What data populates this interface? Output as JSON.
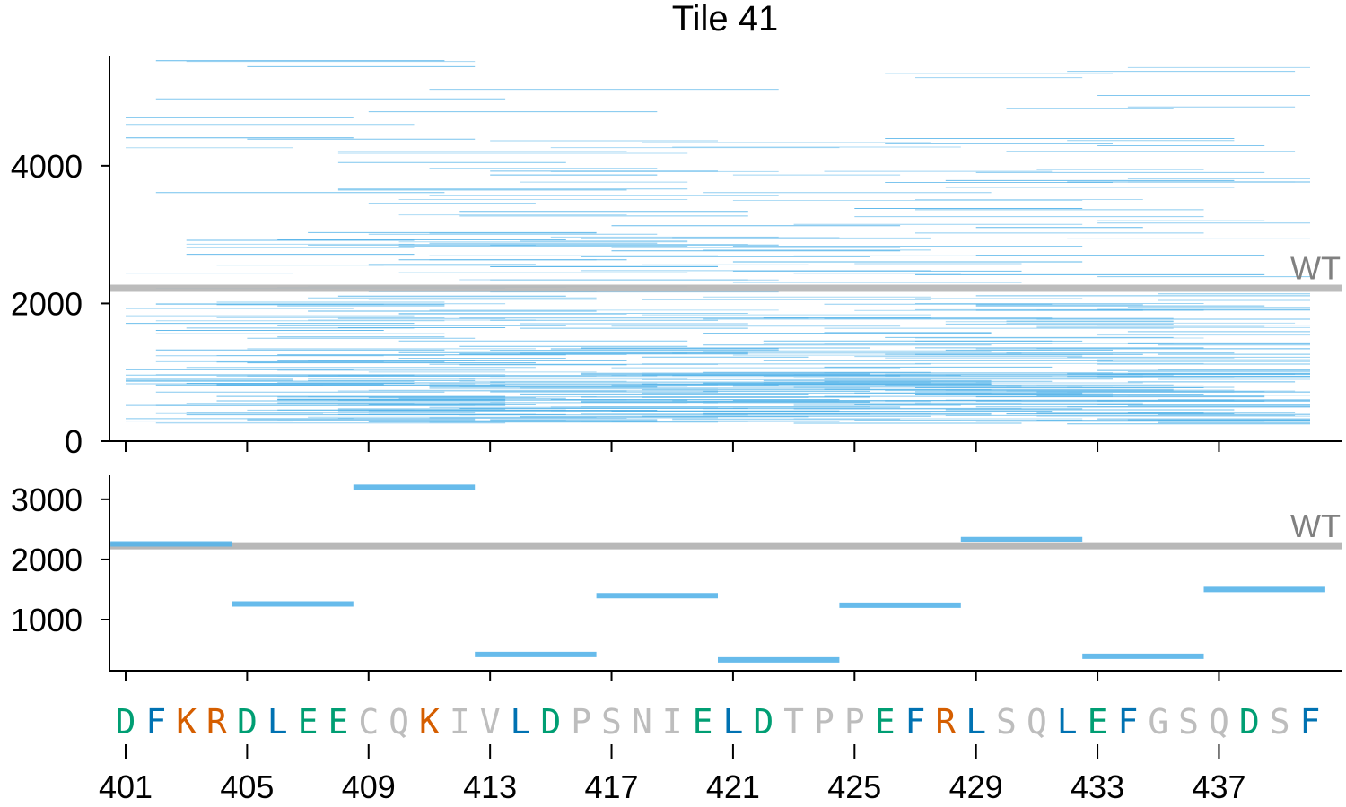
{
  "chart_data": [
    {
      "type": "segments",
      "title": "Tile 41",
      "ylim": [
        0,
        5600
      ],
      "yticks": [
        0,
        2000,
        4000
      ],
      "wt_value": 2220,
      "wt_label": "WT",
      "segment_color": "#56b4e9",
      "wt_color": "#b8b8b8",
      "segment_bands": [
        {
          "y_min": 250,
          "y_max": 1000,
          "count": 220
        },
        {
          "y_min": 1000,
          "y_max": 2000,
          "count": 120
        },
        {
          "y_min": 2000,
          "y_max": 3000,
          "count": 60
        },
        {
          "y_min": 3000,
          "y_max": 4000,
          "count": 40
        },
        {
          "y_min": 4000,
          "y_max": 5650,
          "count": 30
        }
      ]
    },
    {
      "type": "segments",
      "ylim": [
        150,
        3400
      ],
      "yticks": [
        1000,
        2000,
        3000
      ],
      "wt_value": 2220,
      "wt_label": "WT",
      "segment_color": "#56b4e9",
      "wt_color": "#b8b8b8",
      "segments": [
        {
          "x_start": 401,
          "x_end": 405,
          "value": 2260
        },
        {
          "x_start": 405,
          "x_end": 409,
          "value": 1260
        },
        {
          "x_start": 409,
          "x_end": 413,
          "value": 3200
        },
        {
          "x_start": 413,
          "x_end": 417,
          "value": 420
        },
        {
          "x_start": 417,
          "x_end": 421,
          "value": 1400
        },
        {
          "x_start": 421,
          "x_end": 425,
          "value": 330
        },
        {
          "x_start": 425,
          "x_end": 429,
          "value": 1240
        },
        {
          "x_start": 429,
          "x_end": 433,
          "value": 2330
        },
        {
          "x_start": 433,
          "x_end": 437,
          "value": 390
        },
        {
          "x_start": 437,
          "x_end": 441,
          "value": 1500
        }
      ]
    }
  ],
  "xaxis": {
    "range": [
      400.5,
      441
    ],
    "ticks": [
      401,
      405,
      409,
      413,
      417,
      421,
      425,
      429,
      433,
      437
    ],
    "sequence_start": 401,
    "sequence": [
      {
        "aa": "D",
        "color": "#009e73"
      },
      {
        "aa": "F",
        "color": "#0072b2"
      },
      {
        "aa": "K",
        "color": "#d55e00"
      },
      {
        "aa": "R",
        "color": "#d55e00"
      },
      {
        "aa": "D",
        "color": "#009e73"
      },
      {
        "aa": "L",
        "color": "#0072b2"
      },
      {
        "aa": "E",
        "color": "#009e73"
      },
      {
        "aa": "E",
        "color": "#009e73"
      },
      {
        "aa": "C",
        "color": "#bdbdbd"
      },
      {
        "aa": "Q",
        "color": "#bdbdbd"
      },
      {
        "aa": "K",
        "color": "#d55e00"
      },
      {
        "aa": "I",
        "color": "#bdbdbd"
      },
      {
        "aa": "V",
        "color": "#bdbdbd"
      },
      {
        "aa": "L",
        "color": "#0072b2"
      },
      {
        "aa": "D",
        "color": "#009e73"
      },
      {
        "aa": "P",
        "color": "#bdbdbd"
      },
      {
        "aa": "S",
        "color": "#bdbdbd"
      },
      {
        "aa": "N",
        "color": "#bdbdbd"
      },
      {
        "aa": "I",
        "color": "#bdbdbd"
      },
      {
        "aa": "E",
        "color": "#009e73"
      },
      {
        "aa": "L",
        "color": "#0072b2"
      },
      {
        "aa": "D",
        "color": "#009e73"
      },
      {
        "aa": "T",
        "color": "#bdbdbd"
      },
      {
        "aa": "P",
        "color": "#bdbdbd"
      },
      {
        "aa": "P",
        "color": "#bdbdbd"
      },
      {
        "aa": "E",
        "color": "#009e73"
      },
      {
        "aa": "F",
        "color": "#0072b2"
      },
      {
        "aa": "R",
        "color": "#d55e00"
      },
      {
        "aa": "L",
        "color": "#0072b2"
      },
      {
        "aa": "S",
        "color": "#bdbdbd"
      },
      {
        "aa": "Q",
        "color": "#bdbdbd"
      },
      {
        "aa": "L",
        "color": "#0072b2"
      },
      {
        "aa": "E",
        "color": "#009e73"
      },
      {
        "aa": "F",
        "color": "#0072b2"
      },
      {
        "aa": "G",
        "color": "#bdbdbd"
      },
      {
        "aa": "S",
        "color": "#bdbdbd"
      },
      {
        "aa": "Q",
        "color": "#bdbdbd"
      },
      {
        "aa": "D",
        "color": "#009e73"
      },
      {
        "aa": "S",
        "color": "#bdbdbd"
      },
      {
        "aa": "F",
        "color": "#0072b2"
      }
    ]
  }
}
